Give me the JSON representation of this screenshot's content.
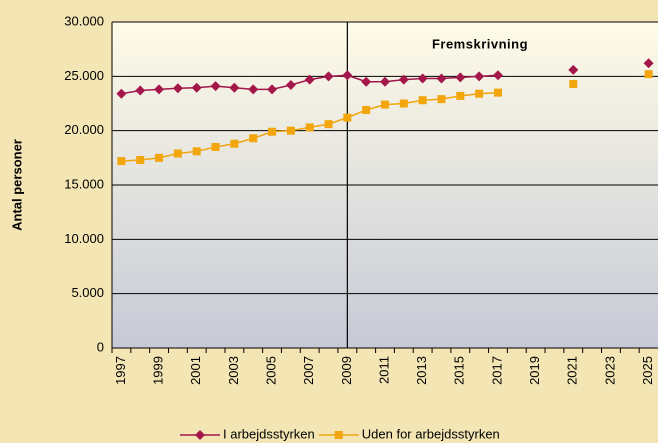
{
  "chart_data": {
    "type": "line",
    "y_label": "Antal personer",
    "annotation": "Fremskrivning",
    "forecast_from": "2009",
    "categories": [
      "1997",
      null,
      "1999",
      null,
      "2001",
      null,
      "2003",
      null,
      "2005",
      null,
      "2007",
      null,
      "2009",
      null,
      "2011",
      null,
      "2013",
      null,
      "2015",
      null,
      "2017",
      null,
      "2019",
      null,
      "2021",
      null,
      "2023",
      null,
      "2025"
    ],
    "series": [
      {
        "name": "I arbejdsstyrken",
        "color": "#a3174b",
        "marker": "diamond",
        "values": [
          23400,
          23700,
          23800,
          23900,
          23950,
          24100,
          23950,
          23800,
          23800,
          24200,
          24700,
          25000,
          25100,
          24500,
          24500,
          24700,
          24800,
          24800,
          24900,
          25000,
          25100,
          null,
          null,
          null,
          25600,
          null,
          null,
          null,
          26200
        ]
      },
      {
        "name": "Uden for arbejdsstyrken",
        "color": "#f2a50d",
        "marker": "square",
        "values": [
          17200,
          17300,
          17500,
          17900,
          18100,
          18500,
          18800,
          19300,
          19900,
          20000,
          20300,
          20600,
          21200,
          21900,
          22400,
          22500,
          22800,
          22900,
          23200,
          23400,
          23500,
          null,
          null,
          null,
          24300,
          null,
          null,
          null,
          25200
        ]
      }
    ],
    "ylim": [
      0,
      30000
    ],
    "yticks": [
      0,
      {
        "value": 5000,
        "label": "5.000"
      },
      {
        "value": 10000,
        "label": "10.000"
      },
      {
        "value": 15000,
        "label": "15.000"
      },
      {
        "value": 20000,
        "label": "20.000"
      },
      {
        "value": 25000,
        "label": "25.000"
      },
      {
        "value": 30000,
        "label": "30.000"
      }
    ],
    "grid": true,
    "legend": "bottom"
  }
}
